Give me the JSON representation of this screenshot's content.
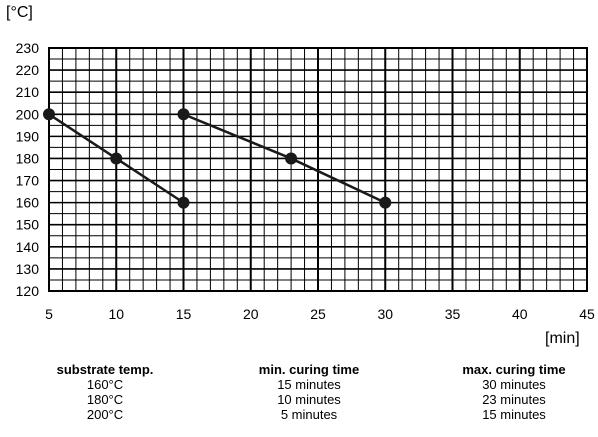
{
  "chart_data": {
    "type": "line",
    "xlabel": "[min]",
    "ylabel": "[°C]",
    "xlim": [
      5,
      45
    ],
    "ylim": [
      120,
      230
    ],
    "x_ticks": [
      5,
      10,
      15,
      20,
      25,
      30,
      35,
      40,
      45
    ],
    "y_ticks": [
      120,
      130,
      140,
      150,
      160,
      170,
      180,
      190,
      200,
      210,
      220,
      230
    ],
    "grid": true,
    "grid_minor_x_step": 1,
    "grid_minor_y_step": 5,
    "line_color": "#1a1a1a",
    "series": [
      {
        "points": [
          [
            5,
            200
          ],
          [
            10,
            180
          ],
          [
            15,
            160
          ]
        ]
      },
      {
        "points": [
          [
            15,
            200
          ],
          [
            23,
            180
          ],
          [
            30,
            160
          ]
        ]
      }
    ]
  },
  "table": {
    "headers": [
      "substrate temp.",
      "min. curing time",
      "max. curing time"
    ],
    "rows": [
      [
        "160°C",
        "15 minutes",
        "30 minutes"
      ],
      [
        "180°C",
        "10 minutes",
        "23 minutes"
      ],
      [
        "200°C",
        "5 minutes",
        "15 minutes"
      ]
    ]
  }
}
